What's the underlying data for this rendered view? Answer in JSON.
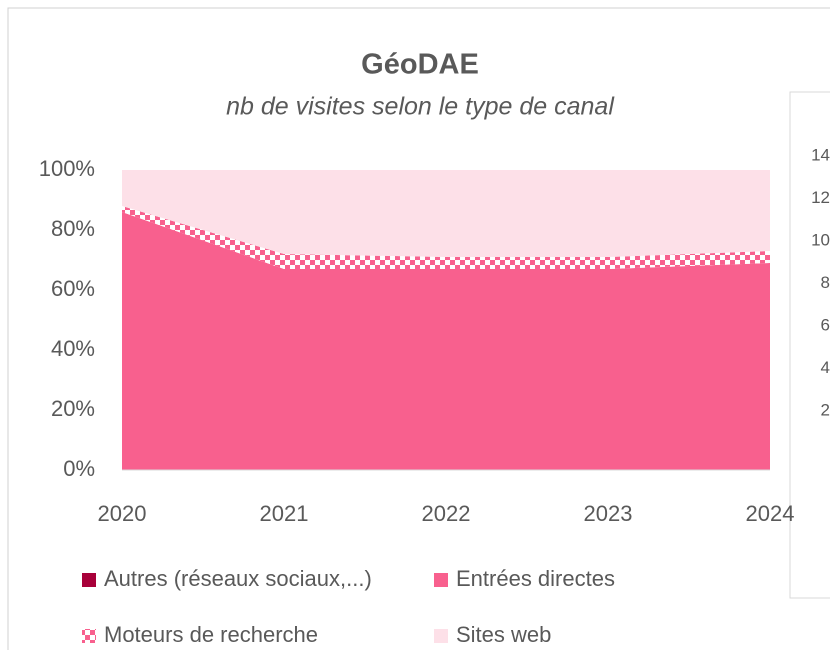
{
  "chart_data": {
    "type": "stacked_area_percent",
    "title": "GéoDAE",
    "subtitle": "nb de visites selon le type de canal",
    "x": [
      2020,
      2021,
      2022,
      2023,
      2024
    ],
    "xlim": [
      2020,
      2024
    ],
    "xticks": [
      2020,
      2021,
      2022,
      2023,
      2024
    ],
    "ylim": [
      0,
      100
    ],
    "yticks": [
      {
        "value": 0,
        "label": "0%"
      },
      {
        "value": 20,
        "label": "20%"
      },
      {
        "value": 40,
        "label": "40%"
      },
      {
        "value": 60,
        "label": "60%"
      },
      {
        "value": 80,
        "label": "80%"
      },
      {
        "value": 100,
        "label": "100%"
      }
    ],
    "grid": false,
    "legend": "bottom",
    "series": [
      {
        "name": "Autres (réseaux sociaux,...)",
        "color": "#a8003a",
        "values": [
          0,
          0,
          0,
          0,
          0
        ]
      },
      {
        "name": "Entrées directes",
        "color": "#f8608e",
        "values": [
          86,
          67,
          67,
          67,
          69
        ]
      },
      {
        "name": "Moteurs de recherche",
        "color": "checker:#f8608e",
        "values": [
          2,
          5,
          4,
          4,
          4
        ]
      },
      {
        "name": "Sites web",
        "color": "#fde0e8",
        "values": [
          12,
          28,
          29,
          29,
          27
        ]
      }
    ]
  },
  "side_panel": {
    "tick_labels": [
      "14",
      "12",
      "10",
      "8",
      "6",
      "4",
      "2"
    ]
  }
}
